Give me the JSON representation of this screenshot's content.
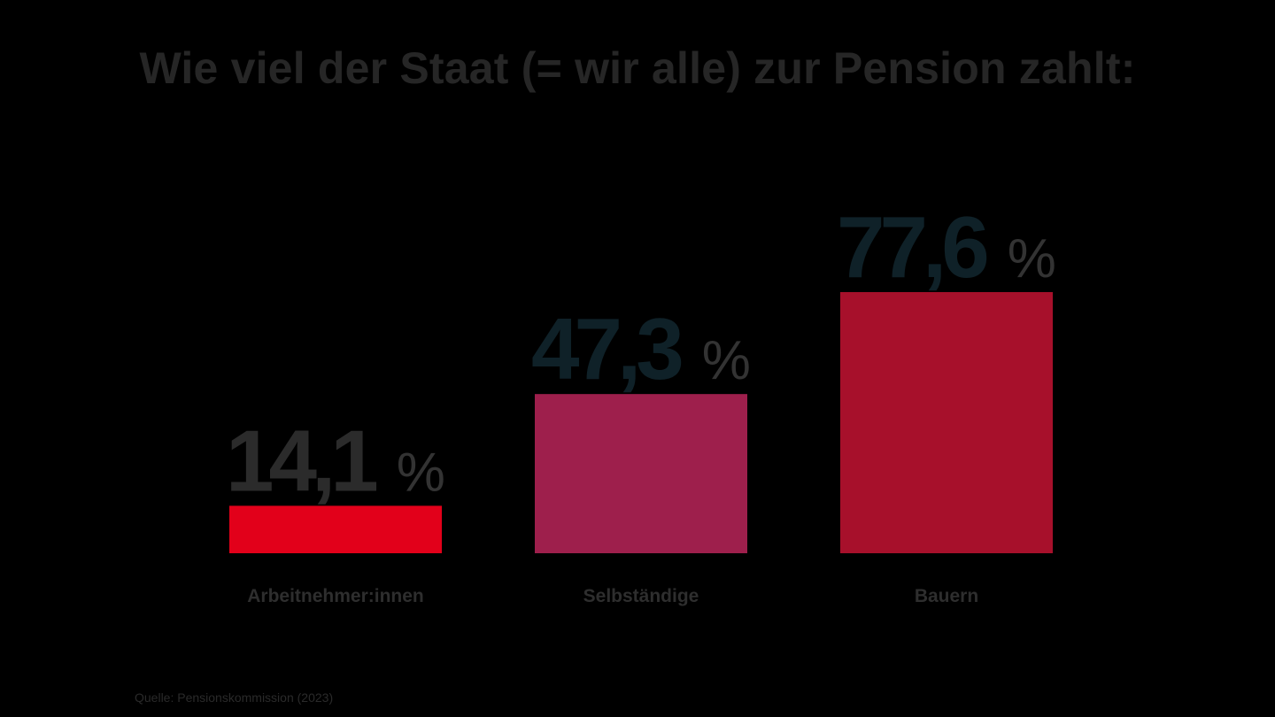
{
  "title": "Wie viel der Staat (= wir alle) zur Pension zahlt:",
  "source": "Quelle: Pensionskommission (2023)",
  "chart_data": {
    "type": "bar",
    "title": "Wie viel der Staat (= wir alle) zur Pension zahlt:",
    "categories": [
      "Arbeitnehmer:innen",
      "Selbständige",
      "Bauern"
    ],
    "values": [
      14.1,
      47.3,
      77.6
    ],
    "value_labels": [
      "14,1",
      "47,3",
      "77,6"
    ],
    "unit": "%",
    "bar_colors": [
      "#e2001a",
      "#9e1f4c",
      "#a7102b"
    ],
    "value_label_colors": [
      "#2b2b2b",
      "#0f2128",
      "#0f2128"
    ],
    "xlabel": "",
    "ylabel": "",
    "grid": false,
    "legend": "none"
  }
}
